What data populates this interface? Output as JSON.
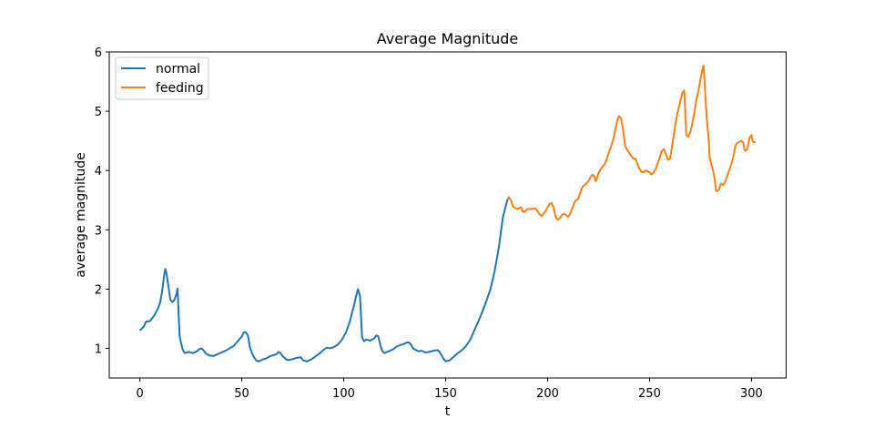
{
  "chart_data": {
    "type": "line",
    "title": "Average Magnitude",
    "xlabel": "t",
    "ylabel": "average magnitude",
    "xlim": [
      -15,
      317
    ],
    "ylim": [
      0.5,
      6
    ],
    "xticks": [
      0,
      50,
      100,
      150,
      200,
      250,
      300
    ],
    "yticks": [
      1,
      2,
      3,
      4,
      5,
      6
    ],
    "legend": {
      "position": "upper-left"
    },
    "grid": false,
    "series": [
      {
        "name": "normal",
        "color": "#1f77b4",
        "points": [
          [
            0,
            1.3
          ],
          [
            2,
            1.37
          ],
          [
            3,
            1.45
          ],
          [
            5,
            1.46
          ],
          [
            7,
            1.55
          ],
          [
            9,
            1.68
          ],
          [
            10,
            1.78
          ],
          [
            11,
            1.98
          ],
          [
            12,
            2.25
          ],
          [
            12.5,
            2.34
          ],
          [
            13,
            2.28
          ],
          [
            14,
            2.05
          ],
          [
            15,
            1.82
          ],
          [
            16,
            1.78
          ],
          [
            17,
            1.82
          ],
          [
            18,
            1.92
          ],
          [
            18.5,
            2.01
          ],
          [
            19,
            1.6
          ],
          [
            19.5,
            1.22
          ],
          [
            20,
            1.12
          ],
          [
            21,
            0.98
          ],
          [
            22,
            0.92
          ],
          [
            23,
            0.93
          ],
          [
            24,
            0.94
          ],
          [
            26,
            0.92
          ],
          [
            28,
            0.95
          ],
          [
            29,
            0.98
          ],
          [
            30,
            1.0
          ],
          [
            31,
            0.98
          ],
          [
            32,
            0.93
          ],
          [
            33,
            0.9
          ],
          [
            34,
            0.88
          ],
          [
            36,
            0.87
          ],
          [
            38,
            0.9
          ],
          [
            40,
            0.93
          ],
          [
            42,
            0.96
          ],
          [
            44,
            1.0
          ],
          [
            46,
            1.04
          ],
          [
            48,
            1.12
          ],
          [
            50,
            1.2
          ],
          [
            51,
            1.27
          ],
          [
            52,
            1.27
          ],
          [
            53,
            1.22
          ],
          [
            54,
            1.02
          ],
          [
            55,
            0.92
          ],
          [
            56,
            0.85
          ],
          [
            57,
            0.8
          ],
          [
            58,
            0.78
          ],
          [
            59,
            0.79
          ],
          [
            60,
            0.81
          ],
          [
            62,
            0.83
          ],
          [
            63,
            0.85
          ],
          [
            64,
            0.87
          ],
          [
            66,
            0.89
          ],
          [
            67,
            0.9
          ],
          [
            68,
            0.94
          ],
          [
            69,
            0.92
          ],
          [
            70,
            0.87
          ],
          [
            71,
            0.84
          ],
          [
            72,
            0.81
          ],
          [
            73,
            0.8
          ],
          [
            75,
            0.82
          ],
          [
            77,
            0.84
          ],
          [
            79,
            0.85
          ],
          [
            80,
            0.8
          ],
          [
            81,
            0.79
          ],
          [
            82,
            0.78
          ],
          [
            84,
            0.81
          ],
          [
            86,
            0.86
          ],
          [
            88,
            0.91
          ],
          [
            90,
            0.97
          ],
          [
            91,
            1.0
          ],
          [
            92,
            1.01
          ],
          [
            93,
            1.0
          ],
          [
            95,
            1.02
          ],
          [
            97,
            1.06
          ],
          [
            99,
            1.14
          ],
          [
            101,
            1.26
          ],
          [
            103,
            1.45
          ],
          [
            105,
            1.72
          ],
          [
            106,
            1.87
          ],
          [
            107,
            2.0
          ],
          [
            108,
            1.88
          ],
          [
            108.5,
            1.55
          ],
          [
            109,
            1.18
          ],
          [
            110,
            1.12
          ],
          [
            111,
            1.15
          ],
          [
            112,
            1.14
          ],
          [
            113,
            1.13
          ],
          [
            114,
            1.15
          ],
          [
            115,
            1.17
          ],
          [
            116,
            1.22
          ],
          [
            117,
            1.2
          ],
          [
            118,
            1.05
          ],
          [
            119,
            0.95
          ],
          [
            120,
            0.92
          ],
          [
            122,
            0.95
          ],
          [
            124,
            0.98
          ],
          [
            126,
            1.03
          ],
          [
            128,
            1.06
          ],
          [
            130,
            1.08
          ],
          [
            131,
            1.1
          ],
          [
            132,
            1.1
          ],
          [
            133,
            1.06
          ],
          [
            134,
            1.0
          ],
          [
            135,
            0.98
          ],
          [
            136,
            0.96
          ],
          [
            137,
            0.95
          ],
          [
            138,
            0.96
          ],
          [
            139,
            0.95
          ],
          [
            140,
            0.93
          ],
          [
            142,
            0.94
          ],
          [
            144,
            0.96
          ],
          [
            146,
            0.97
          ],
          [
            147,
            0.94
          ],
          [
            148,
            0.88
          ],
          [
            149,
            0.82
          ],
          [
            150,
            0.78
          ],
          [
            152,
            0.8
          ],
          [
            154,
            0.86
          ],
          [
            156,
            0.92
          ],
          [
            158,
            0.97
          ],
          [
            160,
            1.04
          ],
          [
            162,
            1.14
          ],
          [
            164,
            1.3
          ],
          [
            166,
            1.45
          ],
          [
            168,
            1.62
          ],
          [
            170,
            1.8
          ],
          [
            172,
            2.0
          ],
          [
            174,
            2.3
          ],
          [
            176,
            2.68
          ],
          [
            178,
            3.2
          ],
          [
            180,
            3.47
          ],
          [
            180.5,
            3.52
          ]
        ]
      },
      {
        "name": "feeding",
        "color": "#ff7f0e",
        "points": [
          [
            180.5,
            3.52
          ],
          [
            181,
            3.55
          ],
          [
            182,
            3.5
          ],
          [
            183,
            3.39
          ],
          [
            184,
            3.37
          ],
          [
            185,
            3.35
          ],
          [
            186,
            3.36
          ],
          [
            187,
            3.38
          ],
          [
            188,
            3.3
          ],
          [
            189,
            3.31
          ],
          [
            190,
            3.35
          ],
          [
            192,
            3.35
          ],
          [
            194,
            3.36
          ],
          [
            195,
            3.32
          ],
          [
            196,
            3.26
          ],
          [
            197,
            3.23
          ],
          [
            198,
            3.27
          ],
          [
            199,
            3.32
          ],
          [
            200,
            3.38
          ],
          [
            201,
            3.44
          ],
          [
            202,
            3.45
          ],
          [
            203,
            3.37
          ],
          [
            204,
            3.2
          ],
          [
            205,
            3.17
          ],
          [
            206,
            3.2
          ],
          [
            207,
            3.25
          ],
          [
            208,
            3.27
          ],
          [
            209,
            3.25
          ],
          [
            210,
            3.22
          ],
          [
            211,
            3.27
          ],
          [
            212,
            3.35
          ],
          [
            213,
            3.45
          ],
          [
            214,
            3.5
          ],
          [
            215,
            3.52
          ],
          [
            216,
            3.62
          ],
          [
            217,
            3.72
          ],
          [
            218,
            3.75
          ],
          [
            219,
            3.78
          ],
          [
            220,
            3.82
          ],
          [
            221,
            3.88
          ],
          [
            222,
            3.93
          ],
          [
            223,
            3.9
          ],
          [
            223.5,
            3.82
          ],
          [
            224,
            3.85
          ],
          [
            225,
            3.96
          ],
          [
            226,
            4.02
          ],
          [
            227,
            4.07
          ],
          [
            228,
            4.1
          ],
          [
            229,
            4.2
          ],
          [
            230,
            4.3
          ],
          [
            231,
            4.4
          ],
          [
            232,
            4.5
          ],
          [
            233,
            4.65
          ],
          [
            234,
            4.82
          ],
          [
            235,
            4.92
          ],
          [
            236,
            4.88
          ],
          [
            237,
            4.7
          ],
          [
            238,
            4.42
          ],
          [
            239,
            4.35
          ],
          [
            240,
            4.3
          ],
          [
            241,
            4.25
          ],
          [
            242,
            4.2
          ],
          [
            243,
            4.2
          ],
          [
            244,
            4.12
          ],
          [
            245,
            4.03
          ],
          [
            246,
            3.98
          ],
          [
            247,
            3.97
          ],
          [
            248,
            4.0
          ],
          [
            249,
            3.99
          ],
          [
            250,
            3.97
          ],
          [
            251,
            3.93
          ],
          [
            252,
            3.97
          ],
          [
            253,
            4.02
          ],
          [
            254,
            4.12
          ],
          [
            255,
            4.22
          ],
          [
            256,
            4.33
          ],
          [
            257,
            4.36
          ],
          [
            258,
            4.28
          ],
          [
            259,
            4.18
          ],
          [
            260,
            4.2
          ],
          [
            261,
            4.4
          ],
          [
            262,
            4.62
          ],
          [
            263,
            4.85
          ],
          [
            264,
            5.02
          ],
          [
            265,
            5.15
          ],
          [
            266,
            5.3
          ],
          [
            267,
            5.35
          ],
          [
            267.5,
            5.0
          ],
          [
            268,
            4.6
          ],
          [
            269,
            4.57
          ],
          [
            270,
            4.65
          ],
          [
            271,
            4.8
          ],
          [
            272,
            4.98
          ],
          [
            273,
            5.2
          ],
          [
            274,
            5.35
          ],
          [
            275,
            5.55
          ],
          [
            276,
            5.72
          ],
          [
            276.5,
            5.77
          ],
          [
            277,
            5.48
          ],
          [
            278,
            4.9
          ],
          [
            279,
            4.52
          ],
          [
            279.5,
            4.2
          ],
          [
            280,
            4.15
          ],
          [
            281,
            4.02
          ],
          [
            282,
            3.85
          ],
          [
            282.5,
            3.67
          ],
          [
            283,
            3.65
          ],
          [
            284,
            3.68
          ],
          [
            285,
            3.78
          ],
          [
            286,
            3.75
          ],
          [
            287,
            3.8
          ],
          [
            288,
            3.9
          ],
          [
            289,
            4.0
          ],
          [
            290,
            4.1
          ],
          [
            291,
            4.22
          ],
          [
            292,
            4.4
          ],
          [
            293,
            4.47
          ],
          [
            294,
            4.48
          ],
          [
            295,
            4.5
          ],
          [
            296,
            4.47
          ],
          [
            296.5,
            4.35
          ],
          [
            297,
            4.33
          ],
          [
            298,
            4.36
          ],
          [
            299,
            4.55
          ],
          [
            300,
            4.6
          ],
          [
            300.5,
            4.5
          ],
          [
            301,
            4.48
          ],
          [
            302,
            4.48
          ]
        ]
      }
    ]
  }
}
